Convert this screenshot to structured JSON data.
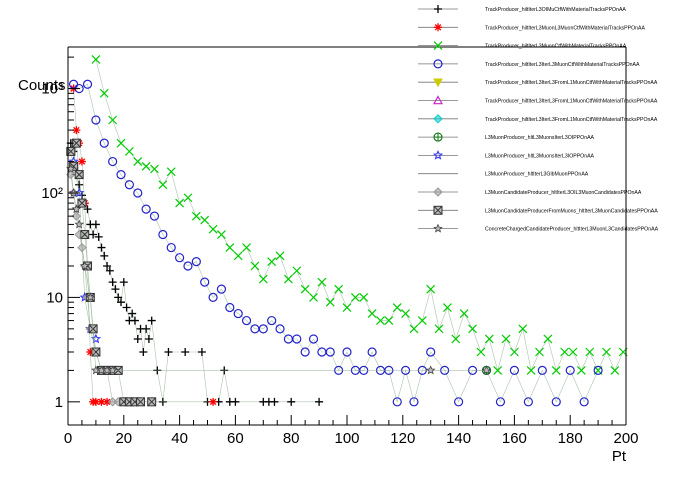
{
  "chart_data": {
    "type": "scatter",
    "title": "",
    "xlabel": "Pt",
    "ylabel": "Counts",
    "xlim": [
      0,
      200
    ],
    "ylim": [
      0.6,
      2500
    ],
    "yscale": "log",
    "grid": false,
    "legend_position": "top-right",
    "x_ticks": [
      "0",
      "20",
      "40",
      "60",
      "80",
      "100",
      "120",
      "140",
      "160",
      "180",
      "200"
    ],
    "y_ticks": [
      {
        "value": 1,
        "label": "1"
      },
      {
        "value": 10,
        "label": "10"
      },
      {
        "value": 100,
        "label": "10²"
      },
      {
        "value": 1000,
        "label": "10³"
      }
    ],
    "series": [
      {
        "name": "TrackProducer_hiltIterL3OIMuCtfWithMaterialTracksPPOnAA",
        "color": "#000000",
        "marker": "plus",
        "x": [
          1,
          2,
          3,
          4,
          5,
          6,
          7,
          8,
          9,
          10,
          11,
          12,
          13,
          14,
          15,
          16,
          17,
          18,
          19,
          20,
          21,
          22,
          23,
          24,
          25,
          26,
          27,
          28,
          29,
          30,
          32,
          34,
          36,
          42,
          48,
          50,
          54,
          56,
          58,
          60,
          70,
          72,
          74,
          80,
          90
        ],
        "y": [
          300,
          250,
          150,
          120,
          95,
          80,
          70,
          50,
          40,
          50,
          38,
          30,
          25,
          20,
          18,
          14,
          12,
          10,
          9,
          14,
          8,
          6,
          7,
          6,
          4,
          5,
          3,
          5,
          4,
          6,
          2,
          1,
          3,
          3,
          3,
          1,
          1,
          2,
          1,
          1,
          1,
          1,
          1,
          1,
          1
        ]
      },
      {
        "name": "TrackProducer_hiltIterL3MuonL3MuonCtfWithMaterialTracksPPOnAA",
        "color": "#ff0000",
        "marker": "star",
        "x": [
          2,
          3,
          4,
          5,
          6,
          7,
          8,
          9,
          10,
          12,
          14,
          52
        ],
        "y": [
          1000,
          400,
          300,
          200,
          80,
          20,
          3,
          1,
          1,
          1,
          1,
          1
        ]
      },
      {
        "name": "TrackProducer_hiltIterL3MuonCtfWithMaterialTracksPPOnAA",
        "color": "#00cc00",
        "marker": "x",
        "x": [
          10,
          13,
          16,
          19,
          22,
          25,
          28,
          31,
          34,
          37,
          40,
          43,
          46,
          49,
          52,
          55,
          58,
          61,
          64,
          67,
          70,
          73,
          76,
          79,
          82,
          85,
          88,
          91,
          94,
          97,
          100,
          103,
          106,
          109,
          112,
          115,
          118,
          121,
          124,
          127,
          130,
          133,
          136,
          139,
          142,
          145,
          148,
          151,
          154,
          157,
          160,
          163,
          166,
          169,
          172,
          175,
          178,
          181,
          184,
          187,
          190,
          193,
          196,
          199
        ],
        "y": [
          1900,
          900,
          500,
          300,
          250,
          200,
          180,
          170,
          120,
          160,
          80,
          90,
          60,
          55,
          45,
          40,
          30,
          25,
          30,
          20,
          15,
          22,
          25,
          15,
          18,
          12,
          10,
          14,
          9,
          12,
          8,
          10,
          10,
          7,
          6,
          6,
          8,
          7,
          5,
          6,
          12,
          5,
          8,
          4,
          7,
          5,
          3,
          4,
          2,
          4,
          3,
          5,
          2,
          3,
          4,
          2,
          3,
          3,
          2,
          3,
          2,
          3,
          2,
          3
        ]
      },
      {
        "name": "TrackProducer_hiltIterL3IterL3MuonCtfWithMaterialTracksPPOnAA",
        "color": "#2222cc",
        "marker": "circle",
        "x": [
          2,
          4,
          7,
          10,
          13,
          16,
          19,
          22,
          25,
          28,
          31,
          34,
          37,
          40,
          43,
          46,
          49,
          52,
          55,
          58,
          61,
          64,
          67,
          70,
          73,
          76,
          79,
          82,
          85,
          88,
          91,
          94,
          97,
          100,
          103,
          106,
          109,
          112,
          115,
          118,
          121,
          124,
          127,
          130,
          135,
          140,
          145,
          150,
          155,
          160,
          165,
          170,
          175,
          180,
          185,
          190
        ],
        "y": [
          1100,
          1000,
          1100,
          500,
          300,
          200,
          150,
          120,
          100,
          70,
          60,
          40,
          30,
          24,
          20,
          22,
          14,
          10,
          12,
          8,
          7,
          6,
          5,
          5,
          6,
          5,
          4,
          4,
          3,
          4,
          3,
          3,
          2,
          3,
          2,
          2,
          3,
          2,
          2,
          1,
          2,
          1,
          2,
          3,
          2,
          1,
          2,
          2,
          1,
          2,
          1,
          2,
          1,
          2,
          1,
          2
        ]
      },
      {
        "name": "TrackProducer_hiltIterL3IterL3FromL1MuonCtfWithMaterialTracksPPOnAA",
        "color": "#cccc00",
        "marker": "triangle-down",
        "x": [],
        "y": []
      },
      {
        "name": "TrackProducer_hiltIterL3IterL3FromL1MuonCtfWithMaterialTracksPPOnAA",
        "color": "#cc22cc",
        "marker": "triangle",
        "x": [],
        "y": []
      },
      {
        "name": "TrackProducer_hiltIterL3IterL3FromL1MuonCtfWithMaterialTracksPPOnAA",
        "color": "#00cccc",
        "marker": "diamond",
        "x": [],
        "y": []
      },
      {
        "name": "L3MuonProducer_hltL3MuonsIterL3OIPPOnAA",
        "color": "#117711",
        "marker": "circle-plus",
        "x": [
          150
        ],
        "y": [
          2
        ]
      },
      {
        "name": "L3MuonProducer_hltL3MuonsIterL3IOPPOnAA",
        "color": "#3333ff",
        "marker": "star-open",
        "x": [
          2,
          4,
          6,
          8,
          10
        ],
        "y": [
          200,
          100,
          10,
          5,
          4
        ]
      },
      {
        "name": "L3MuonProducer_hltIterL3GlbMuonPPOnAA",
        "color": "#555555",
        "marker": "none",
        "x": [],
        "y": []
      },
      {
        "name": "L3MuonCandidateProducer_hltIterL3OIL3MuonCandidatesPPOnAA",
        "color": "#999999",
        "marker": "diamond",
        "x": [
          1,
          2,
          3,
          4,
          5,
          6,
          7,
          8,
          10,
          12,
          14,
          16,
          18,
          20
        ],
        "y": [
          150,
          100,
          60,
          40,
          30,
          20,
          10,
          5,
          3,
          2,
          2,
          1,
          1,
          1
        ]
      },
      {
        "name": "L3MuonCandidateProducerFromMuons_hltIterL3MuonCandidatesPPOnAA",
        "color": "#333333",
        "marker": "square-x",
        "x": [
          1,
          2,
          3,
          4,
          5,
          6,
          7,
          8,
          9,
          10,
          12,
          14,
          16,
          18,
          20,
          22,
          24,
          26,
          30
        ],
        "y": [
          250,
          180,
          300,
          150,
          80,
          40,
          20,
          10,
          5,
          3,
          2,
          2,
          2,
          2,
          1,
          1,
          1,
          1,
          1
        ]
      },
      {
        "name": "ConcreteChargedCandidateProducer_hltIterL3MuonL3CandidatesPPOnAA",
        "color": "#777777",
        "marker": "star-grey",
        "x": [
          1,
          2,
          3,
          4,
          6,
          8,
          10,
          12,
          14,
          16,
          130,
          150
        ],
        "y": [
          170,
          100,
          70,
          50,
          20,
          10,
          2,
          2,
          2,
          2,
          2,
          2
        ]
      }
    ]
  }
}
